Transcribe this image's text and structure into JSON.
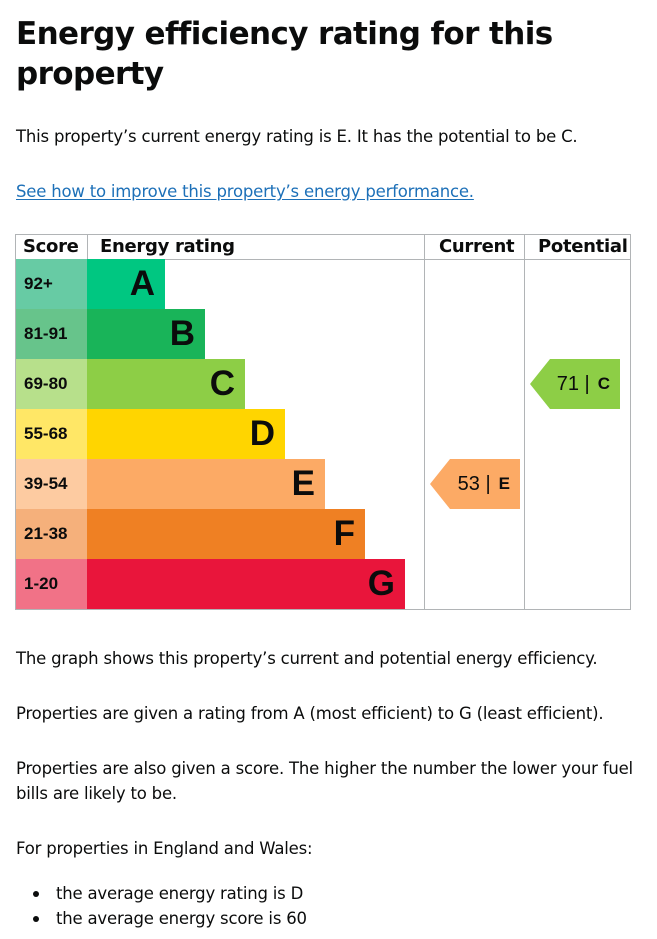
{
  "title": "Energy efficiency rating for this property",
  "intro": "This property’s current energy rating is E. It has the potential to be C.",
  "improve_link": "See how to improve this property’s energy performance.",
  "chart": {
    "headers": {
      "score": "Score",
      "rating": "Energy rating",
      "current": "Current",
      "potential": "Potential"
    },
    "bands": [
      {
        "score": "92+",
        "letter": "A",
        "color": "#00c781",
        "score_bg": "#67cba4"
      },
      {
        "score": "81-91",
        "letter": "B",
        "color": "#19b459",
        "score_bg": "#67c48b"
      },
      {
        "score": "69-80",
        "letter": "C",
        "color": "#8dce46",
        "score_bg": "#b7e08b"
      },
      {
        "score": "55-68",
        "letter": "D",
        "color": "#ffd500",
        "score_bg": "#ffe766"
      },
      {
        "score": "39-54",
        "letter": "E",
        "color": "#fcaa65",
        "score_bg": "#fdcba1"
      },
      {
        "score": "21-38",
        "letter": "F",
        "color": "#ef8023",
        "score_bg": "#f5b07b"
      },
      {
        "score": "1-20",
        "letter": "G",
        "color": "#e9153b",
        "score_bg": "#f17287"
      }
    ],
    "current": {
      "value": "53 |",
      "letter": "E",
      "color": "#fcaa65"
    },
    "potential": {
      "value": "71 |",
      "letter": "C",
      "color": "#8dce46"
    }
  },
  "graph_text": "The graph shows this property’s current and potential energy efficiency.",
  "rating_text": "Properties are given a rating from A (most efficient) to G (least efficient).",
  "score_text": "Properties are also given a score. The higher the number the lower your fuel bills are likely to be.",
  "region_text": "For properties in England and Wales:",
  "bullets": [
    "the average energy rating is D",
    "the average energy score is 60"
  ]
}
